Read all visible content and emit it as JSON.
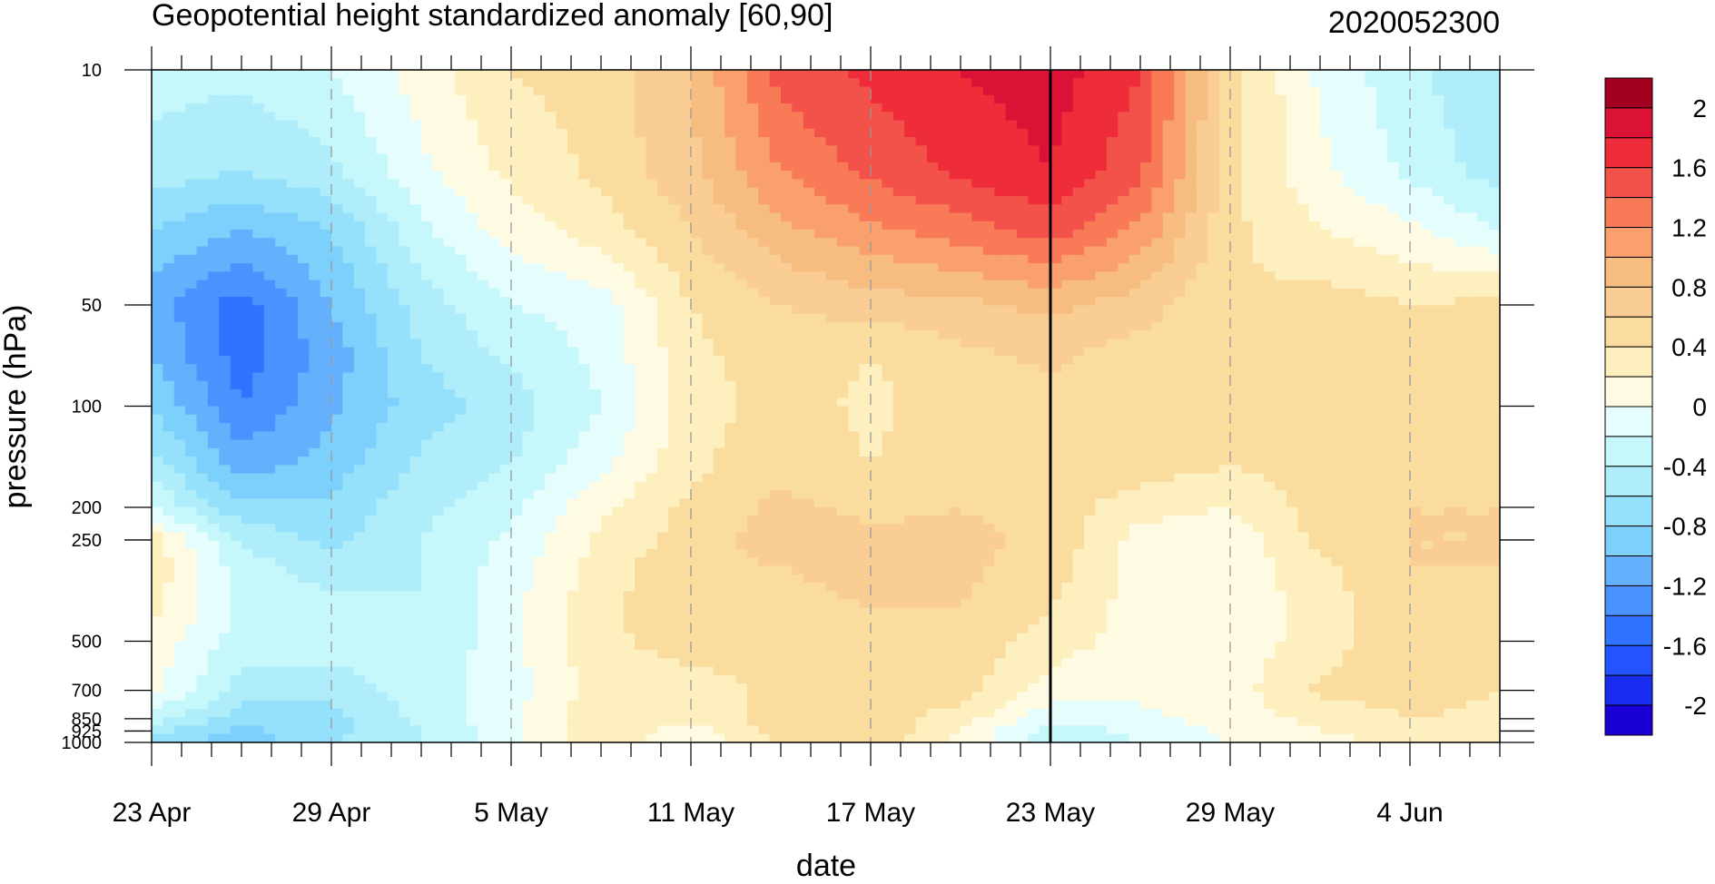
{
  "chart_data": {
    "type": "heatmap",
    "title": "Geopotential height standardized anomaly [60,90]",
    "subtitle": "2020052300",
    "xlabel": "date",
    "ylabel": "pressure (hPa)",
    "x_day_range": [
      0,
      45
    ],
    "x_ticks": [
      {
        "day": 0,
        "label": "23 Apr"
      },
      {
        "day": 6,
        "label": "29 Apr"
      },
      {
        "day": 12,
        "label": "5 May"
      },
      {
        "day": 18,
        "label": "11 May"
      },
      {
        "day": 24,
        "label": "17 May"
      },
      {
        "day": 30,
        "label": "23 May"
      },
      {
        "day": 36,
        "label": "29 May"
      },
      {
        "day": 42,
        "label": "4 Jun"
      }
    ],
    "y_scale": "log",
    "y_range": [
      10,
      1000
    ],
    "y_ticks": [
      10,
      50,
      100,
      200,
      250,
      500,
      700,
      850,
      925,
      1000
    ],
    "y_tick_labels": [
      "10",
      "50",
      "100",
      "200",
      "250",
      "500",
      "700",
      "850",
      "925",
      "1000"
    ],
    "forecast_start_day": 30,
    "colorbar": {
      "levels": [
        -2.2,
        -2.0,
        -1.8,
        -1.6,
        -1.4,
        -1.2,
        -1.0,
        -0.8,
        -0.6,
        -0.4,
        -0.2,
        0,
        0.2,
        0.4,
        0.6,
        0.8,
        1.0,
        1.2,
        1.4,
        1.6,
        1.8,
        2.0,
        2.2
      ],
      "colors": [
        "#1a00d6",
        "#1a2cf0",
        "#2354ff",
        "#2f73ff",
        "#4a93ff",
        "#64b0fd",
        "#7dd0fc",
        "#95e1fb",
        "#afedfb",
        "#c6f7fb",
        "#e6fdfd",
        "#fffbe3",
        "#fdefbe",
        "#fbdc9f",
        "#f9cd93",
        "#f7bc80",
        "#f9a06e",
        "#f87a56",
        "#f3524b",
        "#ef2d3a",
        "#db1236",
        "#a3001f"
      ],
      "labels": [
        "2",
        "1.6",
        "1.2",
        "0.8",
        "0.4",
        "0",
        "-0.4",
        "-0.8",
        "-1.2",
        "-1.6",
        "-2"
      ],
      "label_values": [
        2,
        1.6,
        1.2,
        0.8,
        0.4,
        0,
        -0.4,
        -0.8,
        -1.2,
        -1.6,
        -2
      ]
    },
    "field": {
      "days": [
        0,
        3,
        6,
        9,
        12,
        15,
        18,
        21,
        24,
        27,
        30,
        33,
        36,
        39,
        42,
        45
      ],
      "pressures": [
        10,
        20,
        30,
        50,
        70,
        100,
        150,
        200,
        250,
        300,
        400,
        500,
        700,
        850,
        925,
        1000
      ],
      "values": [
        [
          -0.3,
          -0.35,
          -0.2,
          0.1,
          0.4,
          0.5,
          0.8,
          1.5,
          1.65,
          1.8,
          1.9,
          1.6,
          0.5,
          -0.05,
          -0.35,
          -0.6
        ],
        [
          -0.5,
          -0.6,
          -0.45,
          -0.05,
          0.25,
          0.45,
          0.75,
          1.2,
          1.45,
          1.65,
          1.8,
          1.45,
          0.45,
          0.05,
          -0.25,
          -0.5
        ],
        [
          -0.8,
          -1.0,
          -0.8,
          -0.25,
          0.1,
          0.3,
          0.6,
          0.95,
          1.15,
          1.3,
          1.5,
          1.15,
          0.45,
          0.2,
          0.05,
          -0.2
        ],
        [
          -1.1,
          -1.5,
          -1.0,
          -0.5,
          -0.2,
          -0.1,
          0.4,
          0.6,
          0.7,
          0.75,
          0.85,
          0.7,
          0.4,
          0.5,
          0.4,
          0.45
        ],
        [
          -1.0,
          -1.5,
          -1.1,
          -0.6,
          -0.35,
          -0.15,
          0.35,
          0.5,
          0.4,
          0.55,
          0.65,
          0.5,
          0.45,
          0.55,
          0.5,
          0.55
        ],
        [
          -0.8,
          -1.4,
          -1.05,
          -0.7,
          -0.5,
          -0.2,
          0.3,
          0.5,
          0.35,
          0.5,
          0.5,
          0.5,
          0.5,
          0.5,
          0.5,
          0.6
        ],
        [
          -0.5,
          -1.1,
          -0.9,
          -0.55,
          -0.4,
          -0.05,
          0.35,
          0.55,
          0.4,
          0.55,
          0.5,
          0.5,
          0.4,
          0.5,
          0.55,
          0.6
        ],
        [
          -0.2,
          -0.75,
          -0.75,
          -0.45,
          -0.25,
          0.15,
          0.45,
          0.65,
          0.55,
          0.6,
          0.5,
          0.3,
          0.2,
          0.5,
          0.6,
          0.6
        ],
        [
          0.3,
          -0.45,
          -0.65,
          -0.4,
          -0.15,
          0.25,
          0.5,
          0.7,
          0.65,
          0.65,
          0.55,
          0.1,
          0.05,
          0.45,
          0.6,
          0.6
        ],
        [
          0.35,
          -0.3,
          -0.5,
          -0.4,
          -0.1,
          0.3,
          0.55,
          0.6,
          0.65,
          0.65,
          0.5,
          0.1,
          0.05,
          0.35,
          0.6,
          0.6
        ],
        [
          0.25,
          -0.25,
          -0.35,
          -0.4,
          -0.05,
          0.35,
          0.55,
          0.55,
          0.6,
          0.6,
          0.4,
          0.1,
          0.05,
          0.3,
          0.55,
          0.55
        ],
        [
          0.15,
          -0.3,
          -0.3,
          -0.4,
          -0.05,
          0.35,
          0.5,
          0.45,
          0.55,
          0.55,
          0.3,
          0.1,
          0.05,
          0.3,
          0.55,
          0.45
        ],
        [
          0.05,
          -0.5,
          -0.5,
          -0.3,
          -0.1,
          0.3,
          0.3,
          0.45,
          0.45,
          0.5,
          0.1,
          0.05,
          0.1,
          0.45,
          0.5,
          0.4
        ],
        [
          -0.3,
          -0.7,
          -0.7,
          -0.35,
          -0.05,
          0.35,
          0.25,
          0.5,
          0.55,
          0.3,
          -0.15,
          -0.05,
          0.1,
          0.25,
          0.4,
          0.35
        ],
        [
          -0.55,
          -0.85,
          -0.65,
          -0.4,
          -0.05,
          0.35,
          0.1,
          0.5,
          0.55,
          0.2,
          -0.3,
          -0.15,
          0.05,
          0.2,
          0.3,
          0.25
        ],
        [
          -0.6,
          -0.95,
          -0.6,
          -0.4,
          -0.05,
          0.3,
          0.05,
          0.45,
          0.55,
          0.15,
          -0.35,
          -0.2,
          0.0,
          0.15,
          0.25,
          0.2
        ]
      ]
    }
  }
}
